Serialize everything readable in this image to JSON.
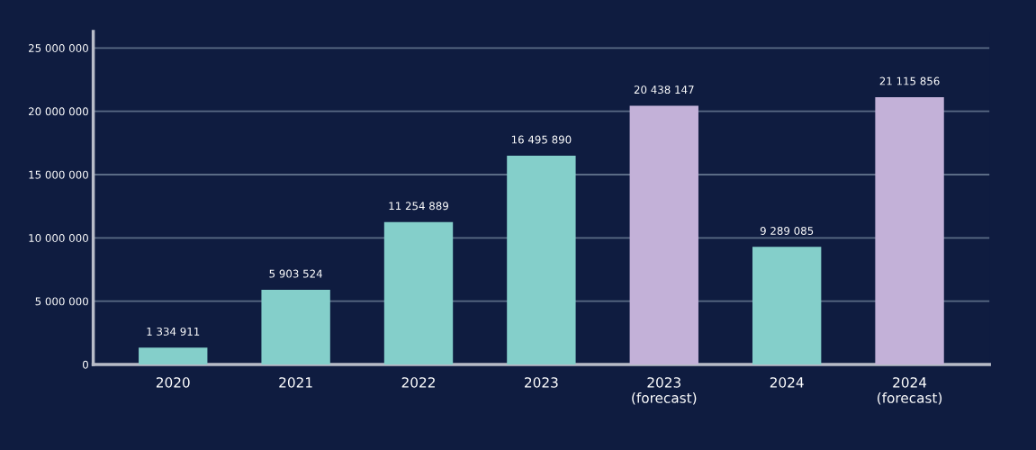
{
  "chart_data": {
    "type": "bar",
    "categories": [
      "2020",
      "2021",
      "2022",
      "2023",
      "2023\n(forecast)",
      "2024",
      "2024\n(forecast)"
    ],
    "values": [
      1334911,
      5903524,
      11254889,
      16495890,
      20438147,
      9289085,
      21115856
    ],
    "colors": [
      "#84cfca",
      "#84cfca",
      "#84cfca",
      "#84cfca",
      "#c3b1d8",
      "#84cfca",
      "#c3b1d8"
    ],
    "value_labels": [
      "1 334 911",
      "5 903 524",
      "11 254 889",
      "16 495 890",
      "20 438 147",
      "9 289 085",
      "21 115 856"
    ],
    "ylim": [
      0,
      26300000
    ],
    "yticks": [
      {
        "value": 0,
        "label": "0"
      },
      {
        "value": 5000000,
        "label": "5 000 000"
      },
      {
        "value": 10000000,
        "label": "10 000 000"
      },
      {
        "value": 15000000,
        "label": "15 000 000"
      },
      {
        "value": 20000000,
        "label": "20 000 000"
      },
      {
        "value": 25000000,
        "label": "25 000 000"
      }
    ],
    "grid": "y"
  }
}
